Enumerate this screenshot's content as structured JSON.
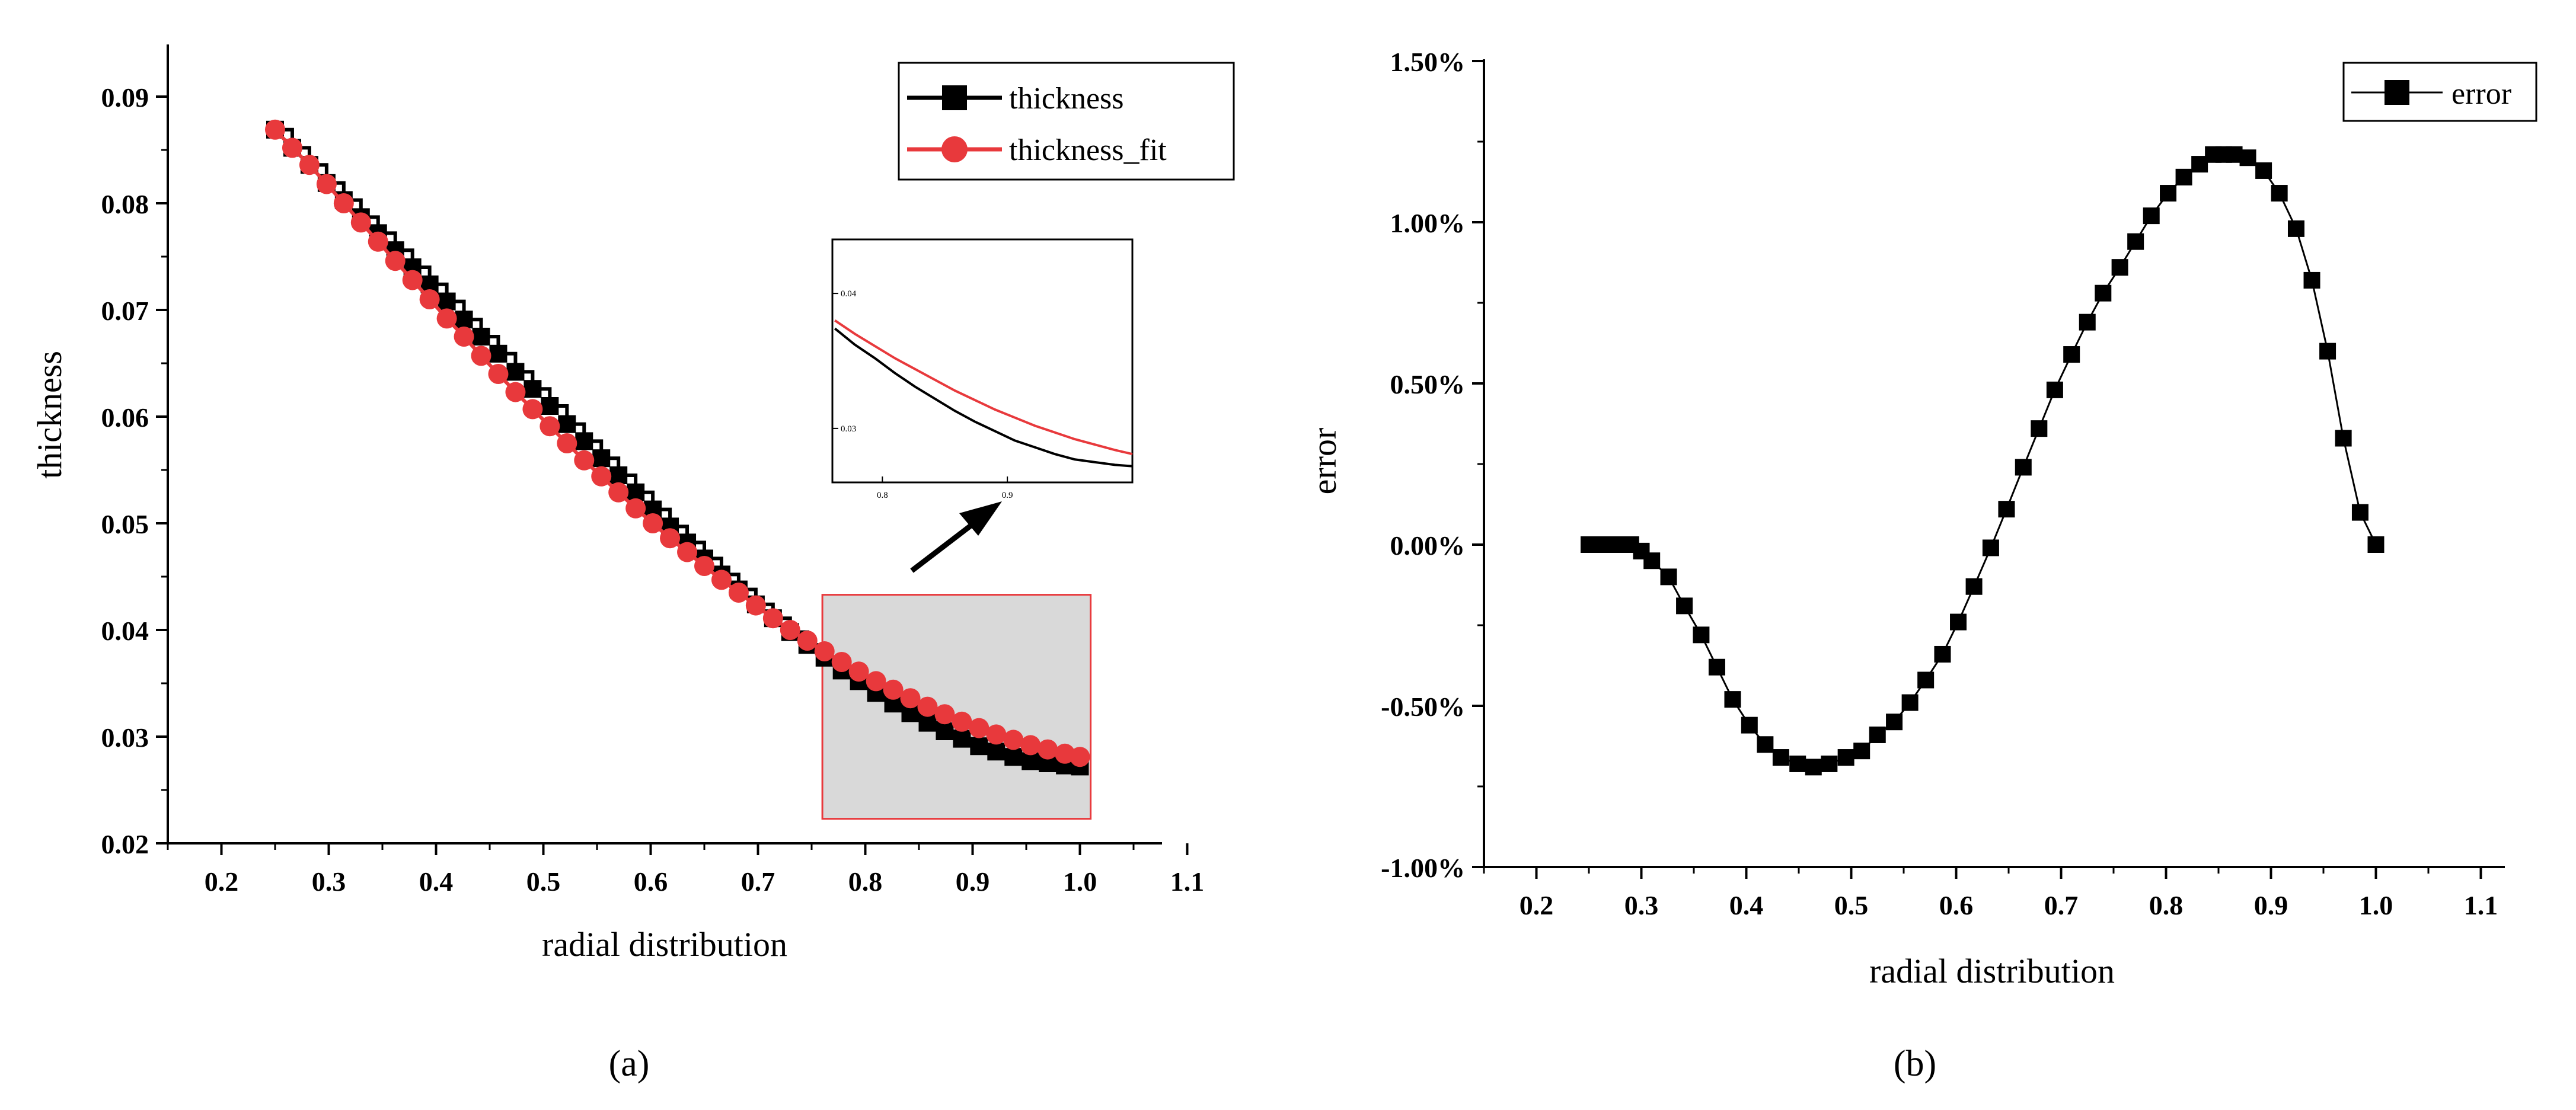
{
  "chart_data": [
    {
      "panel": "a",
      "type": "line",
      "subfigure_label": "(a)",
      "xlabel": "radial distribution",
      "ylabel": "thickness",
      "xlim": [
        0.15,
        1.1
      ],
      "ylim": [
        0.02,
        0.095
      ],
      "xticks": [
        0.2,
        0.3,
        0.4,
        0.5,
        0.6,
        0.7,
        0.8,
        0.9,
        1.0,
        1.1
      ],
      "xtick_labels": [
        "0.2",
        "0.3",
        "0.4",
        "0.5",
        "0.6",
        "0.7",
        "0.8",
        "0.9",
        "1.0",
        "1.1"
      ],
      "yticks": [
        0.02,
        0.03,
        0.04,
        0.05,
        0.06,
        0.07,
        0.08,
        0.09
      ],
      "ytick_labels": [
        "0.02",
        "0.03",
        "0.04",
        "0.05",
        "0.06",
        "0.07",
        "0.08",
        "0.09"
      ],
      "legend_position": "top-right",
      "x": [
        0.25,
        0.266,
        0.282,
        0.298,
        0.314,
        0.33,
        0.346,
        0.362,
        0.378,
        0.394,
        0.41,
        0.426,
        0.442,
        0.458,
        0.474,
        0.49,
        0.506,
        0.522,
        0.538,
        0.554,
        0.57,
        0.586,
        0.602,
        0.618,
        0.634,
        0.65,
        0.666,
        0.682,
        0.698,
        0.714,
        0.73,
        0.746,
        0.762,
        0.778,
        0.794,
        0.81,
        0.826,
        0.842,
        0.858,
        0.874,
        0.89,
        0.906,
        0.922,
        0.938,
        0.954,
        0.97,
        0.986,
        1.0
      ],
      "series": [
        {
          "name": "thickness",
          "color": "#000000",
          "marker": "square",
          "values": [
            0.0869,
            0.0852,
            0.0836,
            0.0819,
            0.0803,
            0.0787,
            0.0772,
            0.0756,
            0.074,
            0.0724,
            0.0708,
            0.0691,
            0.0675,
            0.0659,
            0.0642,
            0.0626,
            0.061,
            0.0593,
            0.0577,
            0.0561,
            0.0545,
            0.0529,
            0.0513,
            0.0497,
            0.0482,
            0.0467,
            0.0452,
            0.0438,
            0.0424,
            0.0411,
            0.0398,
            0.0386,
            0.0374,
            0.0362,
            0.0352,
            0.0341,
            0.0331,
            0.0322,
            0.0313,
            0.0305,
            0.0298,
            0.0291,
            0.0286,
            0.0281,
            0.0277,
            0.0275,
            0.0273,
            0.0272
          ]
        },
        {
          "name": "thickness_fit",
          "color": "#e8393c",
          "marker": "circle",
          "values": [
            0.0869,
            0.0852,
            0.0836,
            0.0818,
            0.08,
            0.0782,
            0.0764,
            0.0746,
            0.0728,
            0.071,
            0.0692,
            0.0675,
            0.0657,
            0.064,
            0.0623,
            0.0607,
            0.0591,
            0.0575,
            0.0559,
            0.0544,
            0.0529,
            0.0514,
            0.05,
            0.0486,
            0.0473,
            0.046,
            0.0447,
            0.0435,
            0.0423,
            0.0411,
            0.04,
            0.039,
            0.038,
            0.037,
            0.0361,
            0.0352,
            0.0344,
            0.0336,
            0.0328,
            0.0321,
            0.0314,
            0.0308,
            0.0302,
            0.0297,
            0.0292,
            0.0288,
            0.0284,
            0.0281
          ]
        }
      ],
      "zoom_region": {
        "x_range": [
          0.76,
          1.01
        ],
        "y_range": [
          0.0223,
          0.0433
        ]
      },
      "inset": {
        "xticks": [
          0.8,
          0.9
        ],
        "xtick_labels": [
          "0.8",
          "0.9"
        ],
        "yticks": [
          0.03,
          0.04
        ],
        "ytick_labels": [
          "0.03",
          "0.04"
        ],
        "xlim": [
          0.76,
          1.0
        ],
        "ylim": [
          0.026,
          0.044
        ]
      }
    },
    {
      "panel": "b",
      "type": "line",
      "subfigure_label": "(b)",
      "xlabel": "radial distribution",
      "ylabel": "error",
      "xlim": [
        0.15,
        1.1
      ],
      "ylim": [
        -0.01,
        0.015
      ],
      "xticks": [
        0.2,
        0.3,
        0.4,
        0.5,
        0.6,
        0.7,
        0.8,
        0.9,
        1.0,
        1.1
      ],
      "xtick_labels": [
        "0.2",
        "0.3",
        "0.4",
        "0.5",
        "0.6",
        "0.7",
        "0.8",
        "0.9",
        "1.0",
        "1.1"
      ],
      "yticks": [
        -0.01,
        -0.005,
        0.0,
        0.005,
        0.01,
        0.015
      ],
      "ytick_labels": [
        "-1.00%",
        "-0.50%",
        "0.00%",
        "0.50%",
        "1.00%",
        "1.50%"
      ],
      "legend_position": "top-right",
      "series": [
        {
          "name": "error",
          "color": "#000000",
          "marker": "square",
          "x": [
            0.25,
            0.26,
            0.27,
            0.28,
            0.29,
            0.3,
            0.31,
            0.326,
            0.341,
            0.357,
            0.372,
            0.387,
            0.403,
            0.418,
            0.433,
            0.449,
            0.464,
            0.479,
            0.495,
            0.51,
            0.525,
            0.541,
            0.556,
            0.571,
            0.587,
            0.602,
            0.617,
            0.633,
            0.648,
            0.664,
            0.679,
            0.694,
            0.71,
            0.725,
            0.74,
            0.756,
            0.771,
            0.786,
            0.802,
            0.817,
            0.832,
            0.845,
            0.855,
            0.865,
            0.878,
            0.893,
            0.908,
            0.924,
            0.939,
            0.954,
            0.969,
            0.985,
            1.0
          ],
          "values": [
            0.0,
            0.0,
            0.0,
            0.0,
            0.0,
            -0.0002,
            -0.0005,
            -0.001,
            -0.0019,
            -0.0028,
            -0.0038,
            -0.0048,
            -0.0056,
            -0.0062,
            -0.0066,
            -0.0068,
            -0.0069,
            -0.0068,
            -0.0066,
            -0.0064,
            -0.0059,
            -0.0055,
            -0.0049,
            -0.0042,
            -0.0034,
            -0.0024,
            -0.0013,
            -0.0001,
            0.0011,
            0.0024,
            0.0036,
            0.0048,
            0.0059,
            0.0069,
            0.0078,
            0.0086,
            0.0094,
            0.0102,
            0.0109,
            0.0114,
            0.0118,
            0.0121,
            0.0121,
            0.0121,
            0.012,
            0.0116,
            0.0109,
            0.0098,
            0.0082,
            0.006,
            0.0033,
            0.001,
            0.0
          ]
        }
      ]
    }
  ]
}
